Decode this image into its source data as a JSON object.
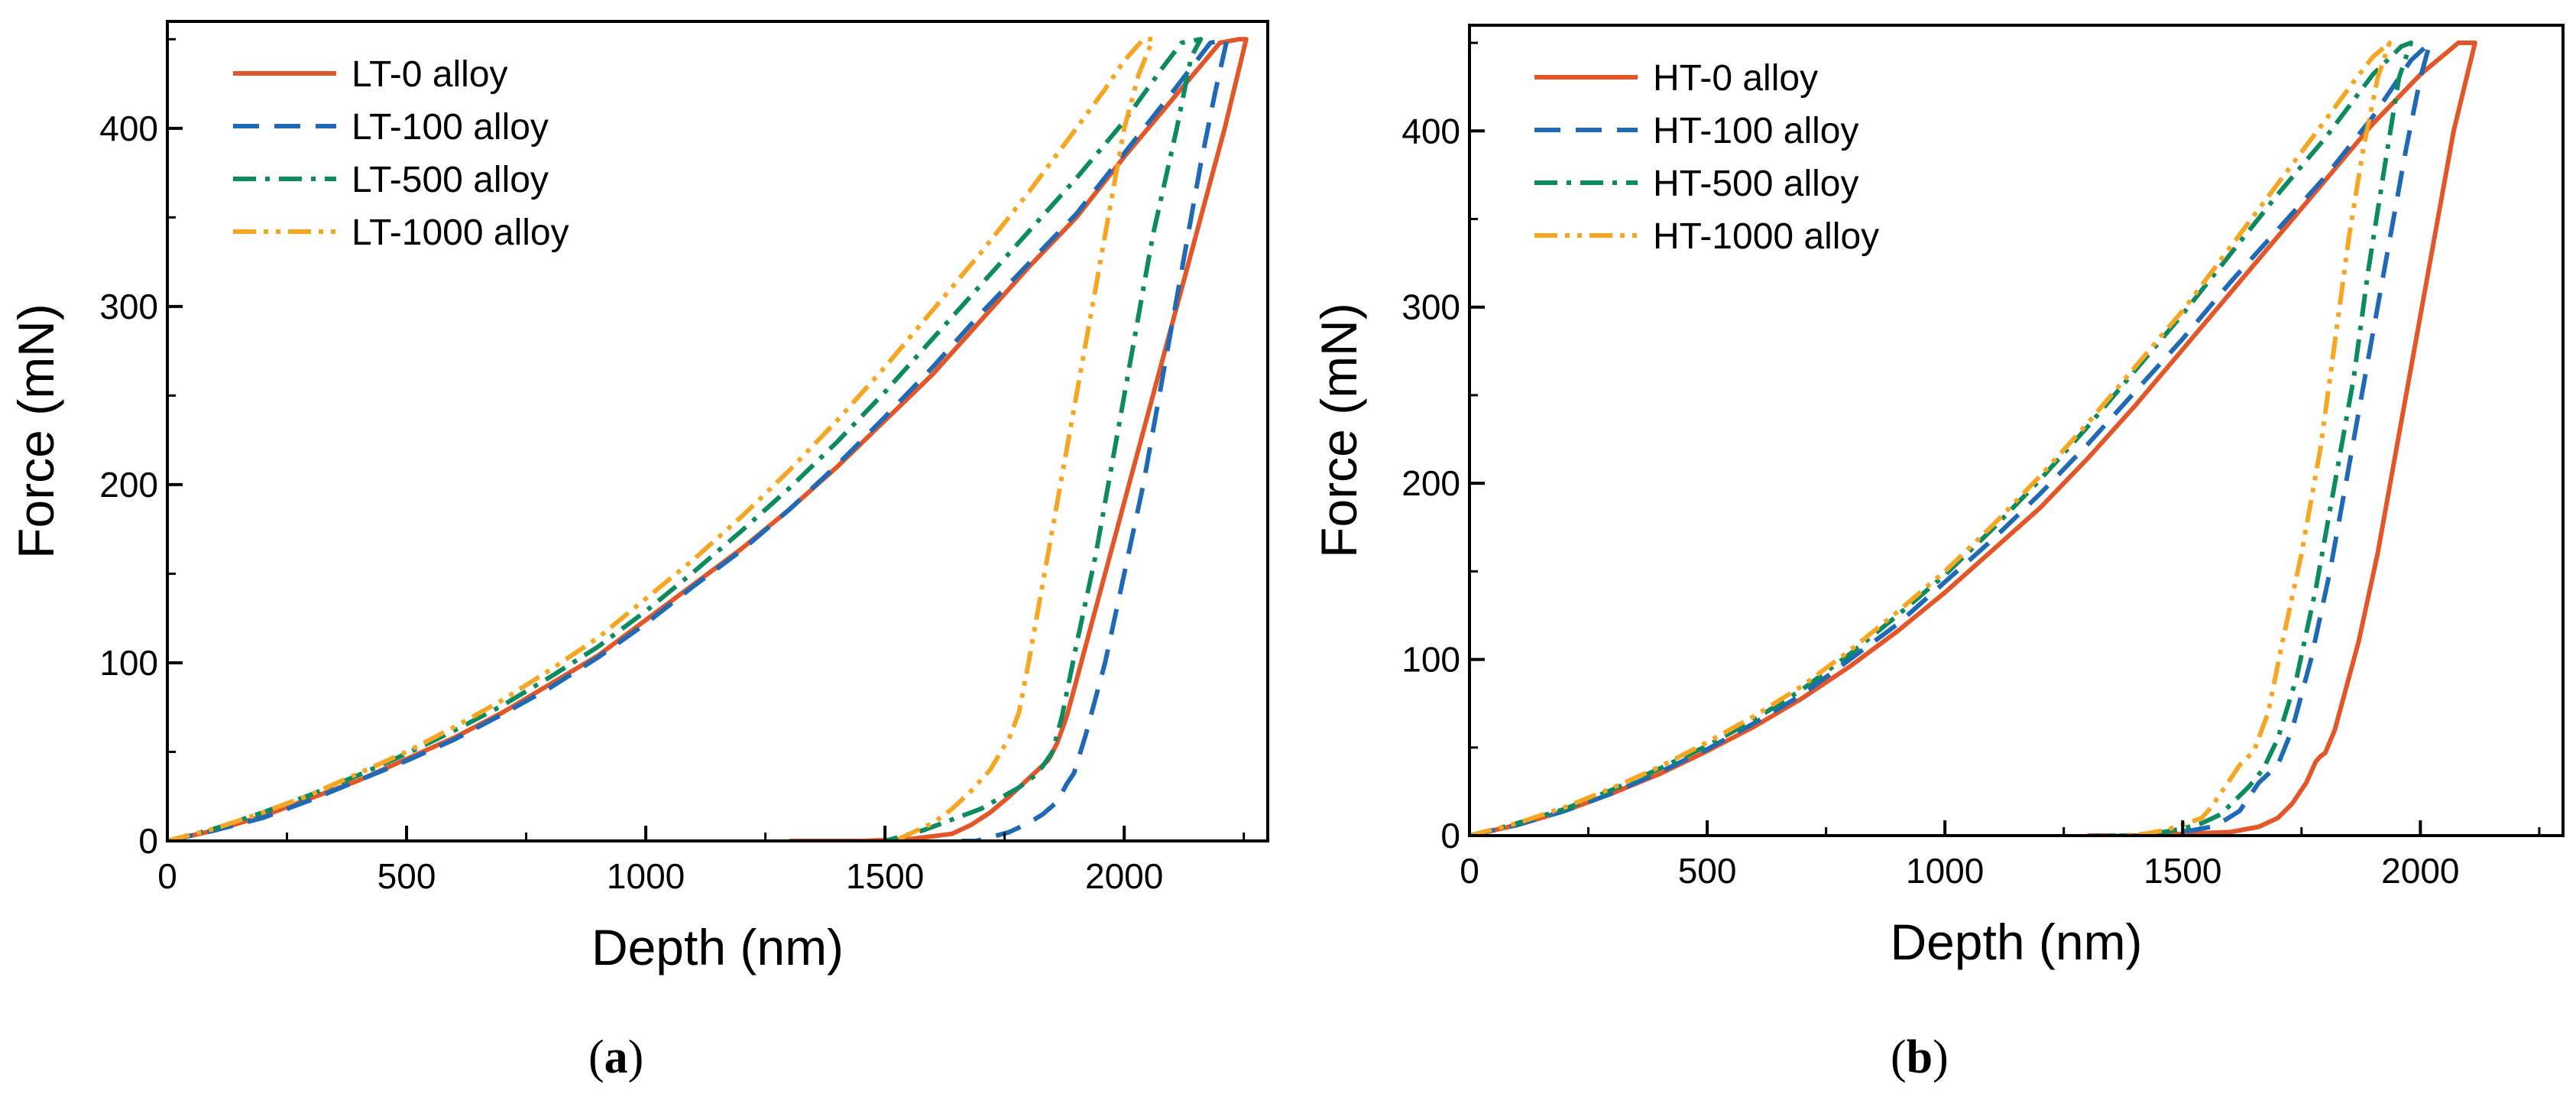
{
  "captions": {
    "a_open": "(",
    "a_letter": "a",
    "a_close": ")",
    "b_open": "(",
    "b_letter": "b",
    "b_close": ")"
  },
  "chart_data": [
    {
      "type": "line",
      "panel": "a",
      "xlabel": "Depth (nm)",
      "ylabel": "Force (mN)",
      "xlim": [
        0,
        2300
      ],
      "ylim": [
        0,
        460
      ],
      "xticks": [
        0,
        500,
        1000,
        1500,
        2000
      ],
      "yticks": [
        0,
        100,
        200,
        300,
        400
      ],
      "legend_position": "top-left",
      "series": [
        {
          "name": "LT-0 alloy",
          "color": "#E2572A",
          "dash": "solid",
          "x": [
            0,
            100,
            200,
            300,
            400,
            500,
            600,
            700,
            800,
            900,
            1000,
            1100,
            1200,
            1300,
            1400,
            1500,
            1600,
            1700,
            1800,
            1900,
            2000,
            2100,
            2200,
            2240,
            2255,
            2210,
            2170,
            2130,
            2090,
            2050,
            2010,
            1970,
            1930,
            1900,
            1880,
            1860,
            1845,
            1840,
            1800,
            1760,
            1720,
            1680,
            1640,
            1550,
            1450,
            1300
          ],
          "y": [
            0,
            6,
            14,
            24,
            34,
            46,
            58,
            72,
            88,
            104,
            124,
            144,
            164,
            186,
            210,
            236,
            262,
            292,
            322,
            350,
            384,
            416,
            448,
            450,
            450,
            400,
            360,
            320,
            280,
            240,
            200,
            160,
            120,
            90,
            70,
            55,
            47,
            45,
            35,
            25,
            16,
            9,
            4,
            1,
            0,
            0
          ]
        },
        {
          "name": "LT-100 alloy",
          "color": "#1F69B5",
          "dash": "long",
          "x": [
            0,
            100,
            200,
            300,
            400,
            500,
            600,
            700,
            800,
            900,
            1000,
            1100,
            1200,
            1300,
            1400,
            1500,
            1600,
            1700,
            1800,
            1900,
            2000,
            2100,
            2180,
            2215,
            2190,
            2160,
            2120,
            2080,
            2040,
            2000,
            1960,
            1920,
            1895,
            1880,
            1860,
            1830,
            1800,
            1760,
            1720,
            1690,
            1660
          ],
          "y": [
            0,
            6,
            13,
            23,
            34,
            45,
            57,
            71,
            86,
            103,
            122,
            143,
            163,
            186,
            211,
            238,
            266,
            296,
            324,
            352,
            386,
            420,
            448,
            450,
            420,
            380,
            320,
            260,
            200,
            150,
            100,
            60,
            38,
            32,
            22,
            15,
            10,
            5,
            2,
            0,
            0
          ]
        },
        {
          "name": "LT-500 alloy",
          "color": "#0E8A5F",
          "dash": "dashdot",
          "x": [
            0,
            100,
            200,
            300,
            400,
            500,
            600,
            700,
            800,
            900,
            1000,
            1100,
            1200,
            1300,
            1400,
            1500,
            1600,
            1700,
            1800,
            1900,
            2000,
            2080,
            2120,
            2160,
            2140,
            2110,
            2060,
            2020,
            1980,
            1940,
            1900,
            1870,
            1850,
            1830,
            1810,
            1780,
            1740,
            1700,
            1660,
            1620,
            1580,
            1540,
            1500
          ],
          "y": [
            0,
            7,
            16,
            26,
            37,
            49,
            62,
            76,
            92,
            109,
            129,
            151,
            174,
            198,
            224,
            252,
            282,
            312,
            342,
            372,
            404,
            434,
            448,
            450,
            440,
            400,
            340,
            280,
            220,
            160,
            110,
            70,
            50,
            42,
            36,
            30,
            24,
            18,
            14,
            10,
            6,
            3,
            0
          ]
        },
        {
          "name": "LT-1000 alloy",
          "color": "#F5A623",
          "dash": "dashdotdot",
          "x": [
            0,
            100,
            200,
            300,
            400,
            500,
            600,
            700,
            800,
            900,
            1000,
            1100,
            1200,
            1300,
            1400,
            1500,
            1600,
            1700,
            1800,
            1900,
            1960,
            2000,
            2040,
            2060,
            2030,
            2000,
            1960,
            1920,
            1880,
            1840,
            1800,
            1780,
            1760,
            1720,
            1680,
            1640,
            1600,
            1560,
            1520
          ],
          "y": [
            0,
            7,
            16,
            26,
            38,
            50,
            64,
            79,
            96,
            114,
            136,
            158,
            182,
            208,
            236,
            266,
            298,
            330,
            364,
            400,
            422,
            438,
            450,
            450,
            430,
            400,
            340,
            280,
            220,
            160,
            100,
            72,
            58,
            40,
            28,
            18,
            10,
            5,
            0
          ]
        }
      ]
    },
    {
      "type": "line",
      "panel": "b",
      "xlabel": "Depth (nm)",
      "ylabel": "Force (mN)",
      "xlim": [
        0,
        2300
      ],
      "ylim": [
        0,
        460
      ],
      "xticks": [
        0,
        500,
        1000,
        1500,
        2000
      ],
      "yticks": [
        0,
        100,
        200,
        300,
        400
      ],
      "legend_position": "top-left",
      "series": [
        {
          "name": "HT-0 alloy",
          "color": "#E2572A",
          "dash": "solid",
          "x": [
            0,
            100,
            200,
            300,
            400,
            500,
            600,
            700,
            800,
            900,
            1000,
            1100,
            1200,
            1300,
            1400,
            1500,
            1600,
            1700,
            1800,
            1900,
            2000,
            2080,
            2110,
            2115,
            2070,
            2030,
            1990,
            1950,
            1910,
            1870,
            1840,
            1820,
            1800,
            1790,
            1780,
            1760,
            1730,
            1700,
            1660,
            1600,
            1500,
            1400,
            1300
          ],
          "y": [
            0,
            6,
            14,
            24,
            35,
            48,
            62,
            78,
            96,
            116,
            138,
            162,
            186,
            214,
            244,
            276,
            308,
            340,
            372,
            404,
            432,
            450,
            450,
            450,
            400,
            340,
            280,
            220,
            160,
            110,
            80,
            60,
            47,
            45,
            42,
            30,
            18,
            10,
            5,
            2,
            1,
            0,
            0
          ]
        },
        {
          "name": "HT-100 alloy",
          "color": "#1F69B5",
          "dash": "long",
          "x": [
            0,
            100,
            200,
            300,
            400,
            500,
            600,
            700,
            800,
            900,
            1000,
            1100,
            1200,
            1300,
            1400,
            1500,
            1600,
            1700,
            1800,
            1900,
            1980,
            2020,
            2000,
            1970,
            1930,
            1890,
            1850,
            1810,
            1770,
            1730,
            1700,
            1680,
            1660,
            1640,
            1620,
            1590,
            1560,
            1520,
            1480,
            1440,
            1400
          ],
          "y": [
            0,
            6,
            14,
            24,
            36,
            49,
            64,
            80,
            100,
            120,
            144,
            168,
            194,
            222,
            252,
            282,
            314,
            344,
            374,
            408,
            440,
            450,
            430,
            390,
            330,
            270,
            210,
            150,
            100,
            60,
            40,
            35,
            30,
            22,
            14,
            9,
            5,
            3,
            2,
            1,
            0
          ]
        },
        {
          "name": "HT-500 alloy",
          "color": "#0E8A5F",
          "dash": "dashdot",
          "x": [
            0,
            100,
            200,
            300,
            400,
            500,
            600,
            700,
            800,
            900,
            1000,
            1100,
            1200,
            1300,
            1400,
            1500,
            1600,
            1700,
            1800,
            1900,
            1960,
            1980,
            1955,
            1925,
            1890,
            1860,
            1820,
            1780,
            1740,
            1700,
            1670,
            1640,
            1610,
            1580,
            1540,
            1500,
            1460,
            1420,
            1380,
            1340,
            1300
          ],
          "y": [
            0,
            7,
            15,
            26,
            38,
            51,
            66,
            83,
            103,
            125,
            148,
            174,
            202,
            232,
            264,
            296,
            330,
            364,
            396,
            432,
            448,
            450,
            430,
            380,
            320,
            260,
            200,
            140,
            90,
            55,
            38,
            28,
            20,
            12,
            7,
            4,
            2,
            1,
            0,
            0,
            0
          ]
        },
        {
          "name": "HT-1000 alloy",
          "color": "#F5A623",
          "dash": "dashdotdot",
          "x": [
            0,
            100,
            200,
            300,
            400,
            500,
            600,
            700,
            800,
            900,
            1000,
            1100,
            1200,
            1300,
            1400,
            1500,
            1600,
            1700,
            1800,
            1860,
            1900,
            1935,
            1910,
            1880,
            1850,
            1820,
            1790,
            1750,
            1710,
            1680,
            1650,
            1620,
            1600,
            1580,
            1560,
            1540,
            1500,
            1460,
            1420,
            1380,
            1340
          ],
          "y": [
            0,
            7,
            16,
            27,
            39,
            53,
            68,
            85,
            105,
            127,
            150,
            176,
            204,
            234,
            266,
            298,
            334,
            370,
            406,
            428,
            442,
            450,
            430,
            390,
            340,
            280,
            220,
            160,
            110,
            70,
            48,
            40,
            32,
            24,
            16,
            10,
            6,
            3,
            1,
            0,
            0
          ]
        }
      ]
    }
  ]
}
